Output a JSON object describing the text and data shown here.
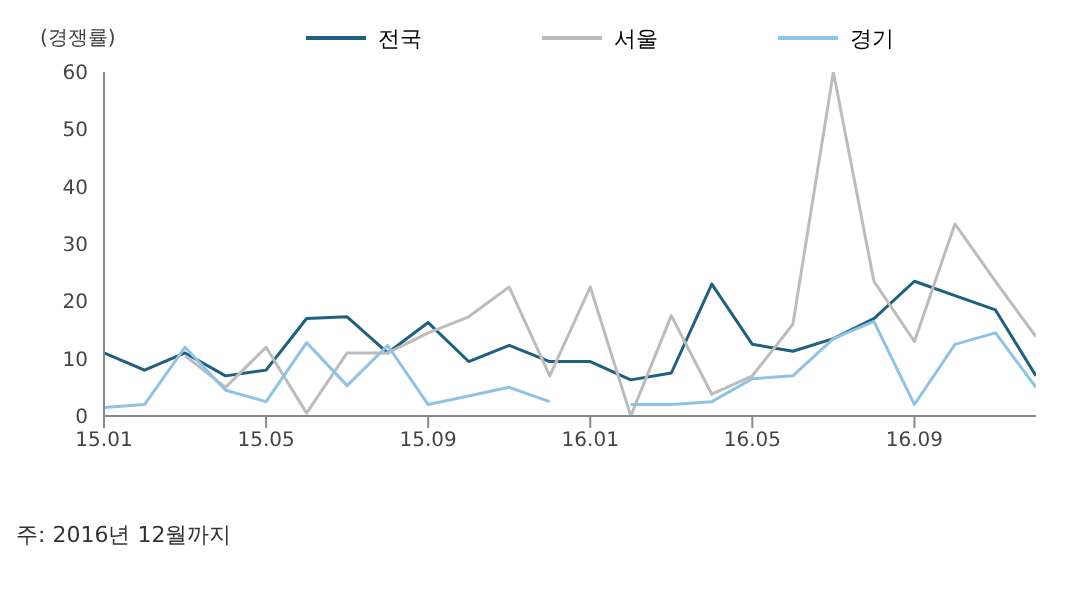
{
  "chart_data": {
    "type": "line",
    "ylabel": "(경쟁률)",
    "categories": [
      "15.01",
      null,
      null,
      null,
      "15.05",
      null,
      null,
      null,
      "15.09",
      null,
      null,
      null,
      "16.01",
      null,
      null,
      null,
      "16.05",
      null,
      null,
      null,
      "16.09",
      null,
      null,
      null
    ],
    "series": [
      {
        "name": "전국",
        "color": "#1f5f7f",
        "values": [
          11,
          8,
          11,
          7,
          8,
          17,
          17.3,
          11,
          16.3,
          9.5,
          12.3,
          9.5,
          9.5,
          6.3,
          7.5,
          23,
          12.5,
          11.3,
          13.5,
          17,
          23.5,
          21,
          18.5,
          7
        ]
      },
      {
        "name": "서울",
        "color": "#bcbcbc",
        "values": [
          null,
          null,
          10.5,
          5,
          12,
          0.5,
          11,
          11,
          14.5,
          17.3,
          22.5,
          7,
          22.5,
          0,
          17.5,
          3.8,
          7,
          16,
          60,
          23.5,
          13,
          33.5,
          23.5,
          13.8
        ]
      },
      {
        "name": "경기",
        "color": "#8fc3e6",
        "values": [
          1.5,
          2,
          12,
          4.5,
          2.5,
          12.8,
          5.3,
          12.3,
          2,
          3.5,
          5,
          2.5,
          null,
          2,
          2,
          2.5,
          6.5,
          7,
          13.5,
          16.5,
          2,
          12.5,
          14.5,
          5
        ]
      }
    ],
    "ylim": [
      0,
      60
    ],
    "yticks": [
      0,
      10,
      20,
      30,
      40,
      50,
      60
    ],
    "legend": "top",
    "marker": "none",
    "line_style": "solid",
    "annotations": [
      "주: 2016년 12월까지"
    ]
  }
}
